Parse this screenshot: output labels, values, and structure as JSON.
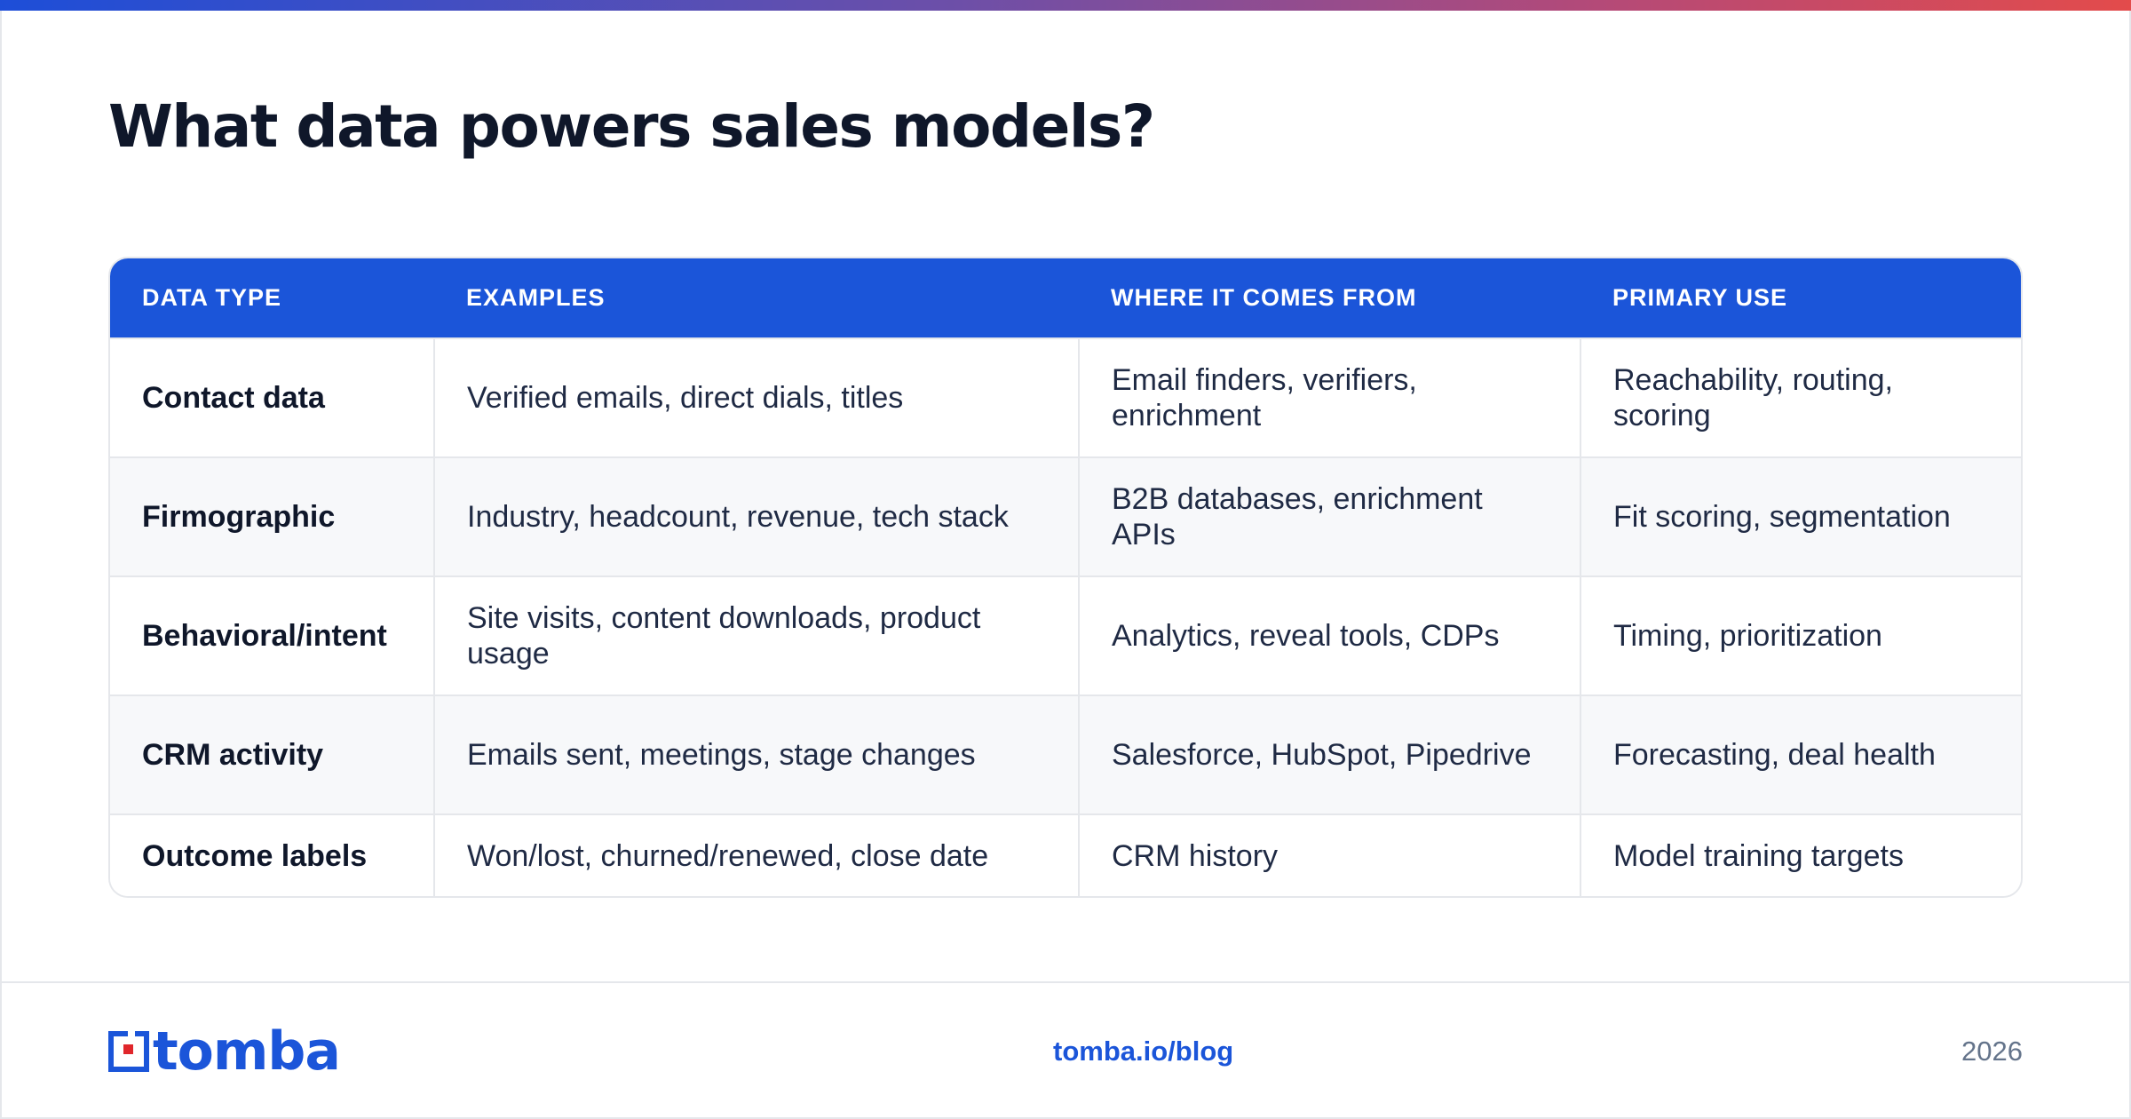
{
  "title": "What data powers sales models?",
  "table": {
    "headers": [
      "DATA TYPE",
      "EXAMPLES",
      "WHERE IT COMES FROM",
      "PRIMARY USE"
    ],
    "rows": [
      [
        "Contact data",
        "Verified emails, direct dials, titles",
        "Email finders, verifiers, enrichment",
        "Reachability, routing, scoring"
      ],
      [
        "Firmographic",
        "Industry, headcount, revenue, tech stack",
        "B2B databases, enrichment APIs",
        "Fit scoring, segmentation"
      ],
      [
        "Behavioral/intent",
        "Site visits, content downloads, product usage",
        "Analytics, reveal tools, CDPs",
        "Timing, prioritization"
      ],
      [
        "CRM activity",
        "Emails sent, meetings, stage changes",
        "Salesforce, HubSpot, Pipedrive",
        "Forecasting, deal health"
      ],
      [
        "Outcome labels",
        "Won/lost, churned/renewed, close date",
        "CRM history",
        "Model training targets"
      ]
    ]
  },
  "footer": {
    "logo_text": "tomba",
    "link": "tomba.io/blog",
    "year": "2026"
  },
  "colors": {
    "accent": "#1b55d9",
    "header_bg": "#1b55d9",
    "logo_red": "#e0262b",
    "gradient": [
      "#1d4ed8",
      "#e34b4b"
    ]
  },
  "icons": [
    "tomba-logo-icon"
  ]
}
